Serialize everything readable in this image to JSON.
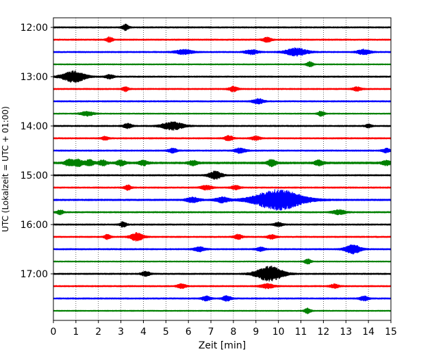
{
  "chart_data": {
    "type": "line",
    "title": "",
    "xlabel": "Zeit  [min]",
    "ylabel": "UTC (Lokalzeit = UTC + 01:00)",
    "xlim": [
      0,
      15
    ],
    "x_ticks": [
      0,
      1,
      2,
      3,
      4,
      5,
      6,
      7,
      8,
      9,
      10,
      11,
      12,
      13,
      14,
      15
    ],
    "y_tick_labels": [
      "12:00",
      "13:00",
      "14:00",
      "15:00",
      "16:00",
      "17:00"
    ],
    "y_tick_traces": [
      0,
      4,
      8,
      12,
      16,
      20
    ],
    "vertical_grid": "dotted",
    "line_colors": [
      "#000000",
      "#ff0000",
      "#0000ff",
      "#008000"
    ],
    "traces": [
      {
        "start": "12:00",
        "color": "#000000",
        "noise": 0.1,
        "events": [
          [
            3.2,
            0.15,
            0.45
          ]
        ]
      },
      {
        "start": "12:15",
        "color": "#ff0000",
        "noise": 0.1,
        "events": [
          [
            2.5,
            0.15,
            0.4
          ],
          [
            9.5,
            0.2,
            0.35
          ]
        ]
      },
      {
        "start": "12:30",
        "color": "#0000ff",
        "noise": 0.1,
        "events": [
          [
            5.8,
            0.4,
            0.35
          ],
          [
            8.8,
            0.3,
            0.35
          ],
          [
            10.8,
            0.5,
            0.6
          ],
          [
            13.8,
            0.3,
            0.4
          ]
        ]
      },
      {
        "start": "12:45",
        "color": "#008000",
        "noise": 0.08,
        "events": [
          [
            11.4,
            0.15,
            0.4
          ]
        ]
      },
      {
        "start": "13:00",
        "color": "#000000",
        "noise": 0.1,
        "events": [
          [
            0.9,
            0.5,
            0.9
          ],
          [
            2.5,
            0.2,
            0.3
          ]
        ]
      },
      {
        "start": "13:15",
        "color": "#ff0000",
        "noise": 0.1,
        "events": [
          [
            3.2,
            0.15,
            0.35
          ],
          [
            8.0,
            0.2,
            0.4
          ],
          [
            13.5,
            0.2,
            0.3
          ]
        ]
      },
      {
        "start": "13:30",
        "color": "#0000ff",
        "noise": 0.1,
        "events": [
          [
            9.1,
            0.25,
            0.4
          ]
        ]
      },
      {
        "start": "13:45",
        "color": "#008000",
        "noise": 0.08,
        "events": [
          [
            1.5,
            0.3,
            0.35
          ],
          [
            11.9,
            0.15,
            0.4
          ]
        ]
      },
      {
        "start": "14:00",
        "color": "#000000",
        "noise": 0.1,
        "events": [
          [
            3.3,
            0.2,
            0.35
          ],
          [
            5.3,
            0.5,
            0.6
          ],
          [
            14.0,
            0.15,
            0.25
          ]
        ]
      },
      {
        "start": "14:15",
        "color": "#ff0000",
        "noise": 0.1,
        "events": [
          [
            2.3,
            0.15,
            0.3
          ],
          [
            7.8,
            0.2,
            0.4
          ],
          [
            9.0,
            0.2,
            0.3
          ]
        ]
      },
      {
        "start": "14:30",
        "color": "#0000ff",
        "noise": 0.1,
        "events": [
          [
            5.3,
            0.2,
            0.35
          ],
          [
            8.3,
            0.25,
            0.4
          ],
          [
            14.8,
            0.2,
            0.3
          ]
        ]
      },
      {
        "start": "14:45",
        "color": "#008000",
        "noise": 0.15,
        "events": [
          [
            0.7,
            0.2,
            0.5
          ],
          [
            1.1,
            0.2,
            0.5
          ],
          [
            1.6,
            0.2,
            0.45
          ],
          [
            2.2,
            0.2,
            0.4
          ],
          [
            3.0,
            0.2,
            0.4
          ],
          [
            4.0,
            0.2,
            0.35
          ],
          [
            6.2,
            0.2,
            0.35
          ],
          [
            9.7,
            0.2,
            0.5
          ],
          [
            11.8,
            0.2,
            0.4
          ],
          [
            14.8,
            0.2,
            0.35
          ]
        ]
      },
      {
        "start": "15:00",
        "color": "#000000",
        "noise": 0.1,
        "events": [
          [
            7.2,
            0.3,
            0.6
          ]
        ]
      },
      {
        "start": "15:15",
        "color": "#ff0000",
        "noise": 0.1,
        "events": [
          [
            3.3,
            0.15,
            0.4
          ],
          [
            6.8,
            0.25,
            0.35
          ],
          [
            8.1,
            0.2,
            0.3
          ]
        ]
      },
      {
        "start": "15:30",
        "color": "#0000ff",
        "noise": 0.12,
        "events": [
          [
            6.2,
            0.3,
            0.4
          ],
          [
            7.5,
            0.3,
            0.4
          ],
          [
            10.0,
            1.1,
            1.6
          ]
        ]
      },
      {
        "start": "15:45",
        "color": "#008000",
        "noise": 0.1,
        "events": [
          [
            0.3,
            0.15,
            0.35
          ],
          [
            12.7,
            0.3,
            0.35
          ]
        ]
      },
      {
        "start": "16:00",
        "color": "#000000",
        "noise": 0.1,
        "events": [
          [
            3.1,
            0.15,
            0.4
          ],
          [
            10.0,
            0.2,
            0.3
          ]
        ]
      },
      {
        "start": "16:15",
        "color": "#ff0000",
        "noise": 0.1,
        "events": [
          [
            2.4,
            0.15,
            0.35
          ],
          [
            3.7,
            0.3,
            0.6
          ],
          [
            8.2,
            0.2,
            0.35
          ],
          [
            9.7,
            0.2,
            0.3
          ]
        ]
      },
      {
        "start": "16:30",
        "color": "#0000ff",
        "noise": 0.1,
        "events": [
          [
            6.5,
            0.25,
            0.35
          ],
          [
            9.2,
            0.2,
            0.3
          ],
          [
            13.3,
            0.35,
            0.7
          ]
        ]
      },
      {
        "start": "16:45",
        "color": "#008000",
        "noise": 0.08,
        "events": [
          [
            11.3,
            0.15,
            0.4
          ]
        ]
      },
      {
        "start": "17:00",
        "color": "#000000",
        "noise": 0.1,
        "events": [
          [
            4.1,
            0.2,
            0.35
          ],
          [
            9.6,
            0.6,
            1.2
          ]
        ]
      },
      {
        "start": "17:15",
        "color": "#ff0000",
        "noise": 0.1,
        "events": [
          [
            5.7,
            0.2,
            0.35
          ],
          [
            9.5,
            0.3,
            0.35
          ],
          [
            12.5,
            0.2,
            0.3
          ]
        ]
      },
      {
        "start": "17:30",
        "color": "#0000ff",
        "noise": 0.1,
        "events": [
          [
            6.8,
            0.2,
            0.35
          ],
          [
            7.7,
            0.2,
            0.4
          ],
          [
            13.8,
            0.2,
            0.35
          ]
        ]
      },
      {
        "start": "17:45",
        "color": "#008000",
        "noise": 0.08,
        "events": [
          [
            11.3,
            0.15,
            0.4
          ]
        ]
      }
    ]
  }
}
